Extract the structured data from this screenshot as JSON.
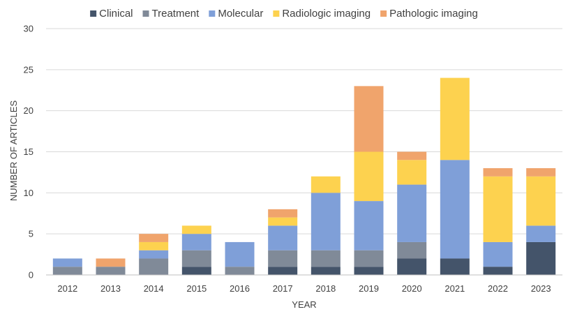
{
  "chart_data": {
    "type": "bar",
    "stacked": true,
    "categories": [
      "2012",
      "2013",
      "2014",
      "2015",
      "2016",
      "2017",
      "2018",
      "2019",
      "2020",
      "2021",
      "2022",
      "2023"
    ],
    "series": [
      {
        "name": "Clinical",
        "color": "#44546a",
        "values": [
          0,
          0,
          0,
          1,
          0,
          1,
          1,
          1,
          2,
          2,
          1,
          4
        ]
      },
      {
        "name": "Treatment",
        "color": "#808a98",
        "values": [
          1,
          1,
          2,
          2,
          1,
          2,
          2,
          2,
          2,
          0,
          0,
          0
        ]
      },
      {
        "name": "Molecular",
        "color": "#7f9fd8",
        "values": [
          1,
          0,
          1,
          2,
          3,
          3,
          7,
          6,
          7,
          12,
          3,
          2
        ]
      },
      {
        "name": "Radiologic imaging",
        "color": "#fdd24f",
        "values": [
          0,
          0,
          1,
          1,
          0,
          1,
          2,
          6,
          3,
          10,
          8,
          6
        ]
      },
      {
        "name": "Pathologic imaging",
        "color": "#f0a46c",
        "values": [
          0,
          1,
          1,
          0,
          0,
          1,
          0,
          8,
          1,
          0,
          1,
          1
        ]
      }
    ],
    "xlabel": "YEAR",
    "ylabel": "NUMBER OF ARTICLES",
    "ylim": [
      0,
      30
    ],
    "yticks": [
      "0",
      "5",
      "10",
      "15",
      "20",
      "25",
      "30"
    ],
    "grid": true,
    "legend_position": "top"
  }
}
